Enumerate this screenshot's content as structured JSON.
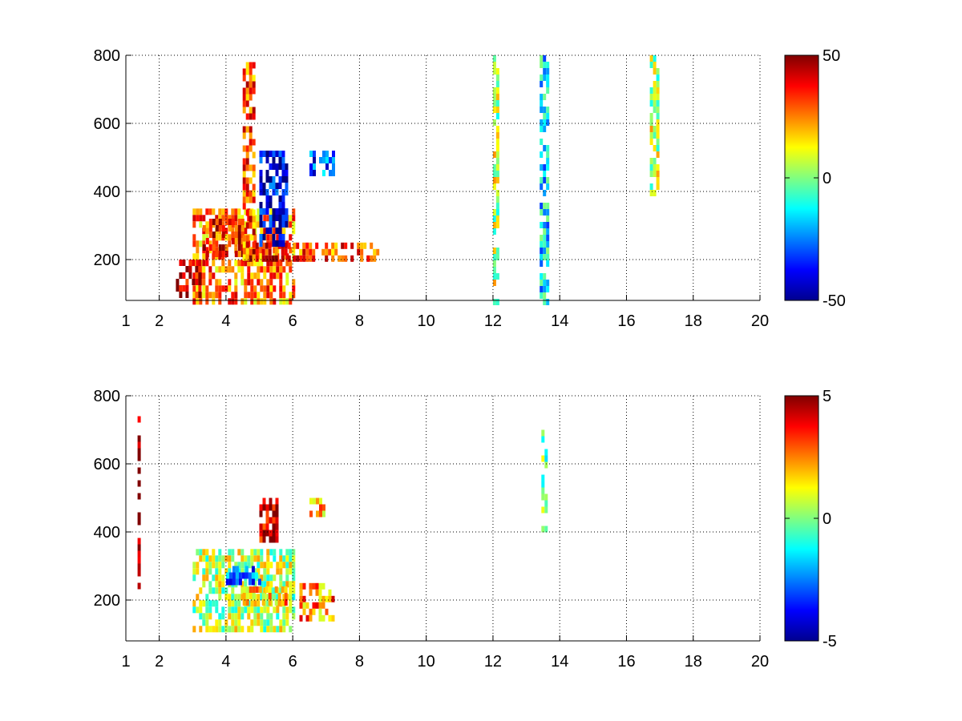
{
  "chart_data": [
    {
      "type": "heatmap",
      "title": "",
      "xlabel": "",
      "ylabel": "",
      "xlim": [
        1,
        20
      ],
      "ylim": [
        80,
        800
      ],
      "x_ticks": [
        1,
        2,
        4,
        6,
        8,
        10,
        12,
        14,
        16,
        18,
        20
      ],
      "x_tick_labels": [
        "1",
        "2",
        "4",
        "6",
        "8",
        "10",
        "12",
        "14",
        "16",
        "18",
        "20"
      ],
      "y_ticks": [
        200,
        400,
        600,
        800
      ],
      "y_tick_labels": [
        "200",
        "400",
        "600",
        "800"
      ],
      "grid": true,
      "colormap": "jet",
      "clim": [
        -50,
        50
      ],
      "colorbar_ticks": [
        -50,
        0,
        50
      ],
      "colorbar_tick_labels": [
        "-50",
        "0",
        "50"
      ],
      "regions": [
        {
          "x": [
            3.0,
            6.0
          ],
          "y": [
            80,
            350
          ],
          "level": 25
        },
        {
          "x": [
            3.3,
            4.5
          ],
          "y": [
            220,
            320
          ],
          "level": 38
        },
        {
          "x": [
            4.5,
            5.9
          ],
          "y": [
            200,
            250
          ],
          "level": 40
        },
        {
          "x": [
            4.5,
            4.8
          ],
          "y": [
            200,
            780
          ],
          "level": 30
        },
        {
          "x": [
            5.0,
            5.8
          ],
          "y": [
            250,
            520
          ],
          "level": -40
        },
        {
          "x": [
            6.0,
            8.5
          ],
          "y": [
            200,
            250
          ],
          "level": 30
        },
        {
          "x": [
            6.5,
            7.2
          ],
          "y": [
            450,
            520
          ],
          "level": -30
        },
        {
          "x": [
            2.5,
            3.2
          ],
          "y": [
            100,
            200
          ],
          "level": 45
        },
        {
          "x": [
            13.4,
            13.6
          ],
          "y": [
            80,
            800
          ],
          "level": -15
        },
        {
          "x": [
            12.0,
            12.1
          ],
          "y": [
            80,
            800
          ],
          "level": 6
        },
        {
          "x": [
            16.7,
            16.9
          ],
          "y": [
            400,
            800
          ],
          "level": 6
        }
      ]
    },
    {
      "type": "heatmap",
      "title": "",
      "xlabel": "",
      "ylabel": "",
      "xlim": [
        1,
        20
      ],
      "ylim": [
        80,
        800
      ],
      "x_ticks": [
        1,
        2,
        4,
        6,
        8,
        10,
        12,
        14,
        16,
        18,
        20
      ],
      "x_tick_labels": [
        "1",
        "2",
        "4",
        "6",
        "8",
        "10",
        "12",
        "14",
        "16",
        "18",
        "20"
      ],
      "y_ticks": [
        200,
        400,
        600,
        800
      ],
      "y_tick_labels": [
        "200",
        "400",
        "600",
        "800"
      ],
      "grid": true,
      "colormap": "jet",
      "clim": [
        -5,
        5
      ],
      "colorbar_ticks": [
        -5,
        0,
        5
      ],
      "colorbar_tick_labels": [
        "-5",
        "0",
        "5"
      ],
      "regions": [
        {
          "x": [
            3.0,
            6.0
          ],
          "y": [
            120,
            350
          ],
          "level": 0.5
        },
        {
          "x": [
            5.0,
            5.5
          ],
          "y": [
            380,
            500
          ],
          "level": 4.5
        },
        {
          "x": [
            4.5,
            5.8
          ],
          "y": [
            200,
            240
          ],
          "level": 2
        },
        {
          "x": [
            6.2,
            7.2
          ],
          "y": [
            150,
            250
          ],
          "level": 2.5
        },
        {
          "x": [
            6.5,
            7.0
          ],
          "y": [
            450,
            500
          ],
          "level": 2
        },
        {
          "x": [
            1.35,
            1.4
          ],
          "y": [
            230,
            740
          ],
          "level": 5
        },
        {
          "x": [
            13.45,
            13.55
          ],
          "y": [
            400,
            700
          ],
          "level": 0
        },
        {
          "x": [
            4.0,
            5.0
          ],
          "y": [
            250,
            300
          ],
          "level": -3
        }
      ]
    }
  ]
}
